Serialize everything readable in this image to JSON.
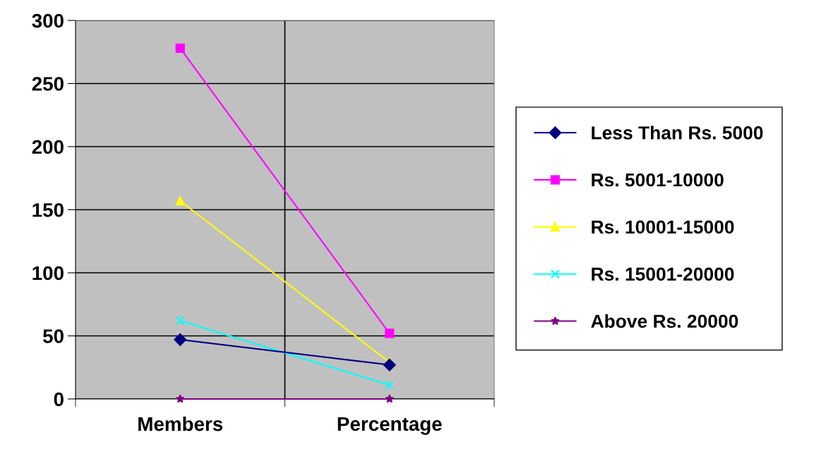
{
  "chart_data": {
    "type": "line",
    "categories": [
      "Members",
      "Percentage"
    ],
    "series": [
      {
        "name": "Less Than Rs. 5000",
        "color": "#000080",
        "marker": "diamond",
        "values": [
          47,
          27
        ]
      },
      {
        "name": "Rs. 5001-10000",
        "color": "#ff00ff",
        "marker": "square",
        "values": [
          278,
          52
        ]
      },
      {
        "name": "Rs. 10001-15000",
        "color": "#ffff00",
        "marker": "triangle",
        "values": [
          157,
          29
        ]
      },
      {
        "name": "Rs. 15001-20000",
        "color": "#00ffff",
        "marker": "cross",
        "values": [
          62,
          11
        ]
      },
      {
        "name": "Above Rs. 20000",
        "color": "#800080",
        "marker": "star",
        "values": [
          0,
          0
        ]
      }
    ],
    "ylim": [
      0,
      300
    ],
    "yticks": [
      0,
      50,
      100,
      150,
      200,
      250,
      300
    ],
    "grid": true,
    "legend": "right"
  }
}
